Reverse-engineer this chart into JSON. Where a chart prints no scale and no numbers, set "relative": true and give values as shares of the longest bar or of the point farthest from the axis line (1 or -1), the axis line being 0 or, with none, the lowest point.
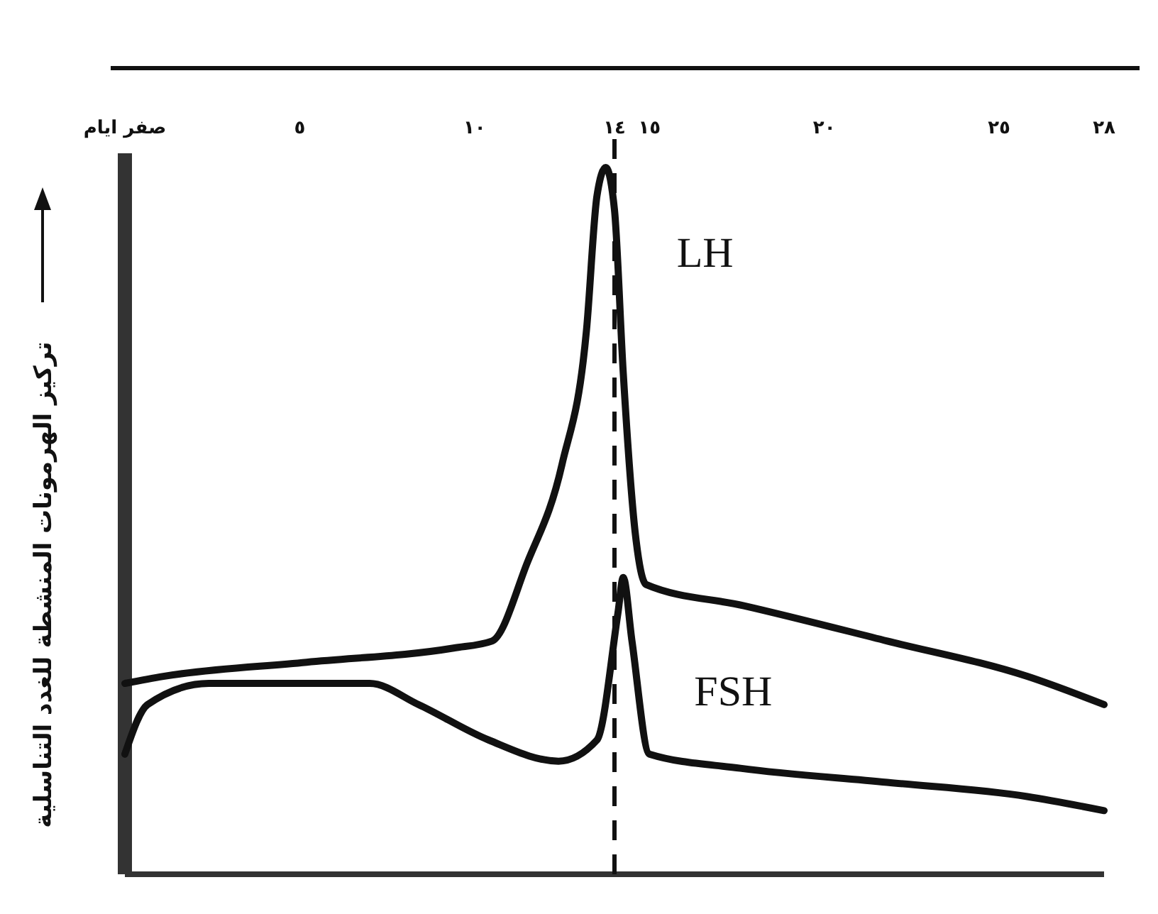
{
  "chart_data": {
    "type": "line",
    "relative": true,
    "ylabel": "تركيز الهرمونات المنشطة للغدد التناسلية",
    "xlim": [
      0,
      28
    ],
    "xticks": [
      {
        "value": 0,
        "label": "صفر ايام"
      },
      {
        "value": 5,
        "label": "٥"
      },
      {
        "value": 10,
        "label": "١٠"
      },
      {
        "value": 14,
        "label": "١٤"
      },
      {
        "value": 15,
        "label": "١٥"
      },
      {
        "value": 20,
        "label": "٢٠"
      },
      {
        "value": 25,
        "label": "٢٥"
      },
      {
        "value": 28,
        "label": "٢٨"
      }
    ],
    "series": [
      {
        "name": "LH",
        "color": "#111111",
        "x": [
          0,
          1.1,
          5.2,
          9.4,
          10.5,
          11.5,
          12.5,
          13.2,
          13.5,
          13.75,
          14,
          14.25,
          14.6,
          14.9,
          17.7,
          21.8,
          25.8,
          28
        ],
        "values": [
          0.27,
          0.28,
          0.3,
          0.32,
          0.33,
          0.44,
          0.58,
          0.77,
          0.96,
          1,
          0.94,
          0.71,
          0.48,
          0.41,
          0.38,
          0.33,
          0.28,
          0.24
        ]
      },
      {
        "name": "FSH",
        "color": "#111111",
        "x": [
          0,
          0.65,
          2.4,
          7,
          8.4,
          10.4,
          12.4,
          13.5,
          14.1,
          14.25,
          14.5,
          15,
          17.6,
          21.8,
          25.8,
          28
        ],
        "values": [
          0.17,
          0.24,
          0.27,
          0.27,
          0.24,
          0.19,
          0.16,
          0.19,
          0.37,
          0.42,
          0.33,
          0.17,
          0.15,
          0.13,
          0.11,
          0.09
        ]
      }
    ],
    "ref_lines": [
      {
        "axis": "x",
        "value": 14,
        "line_style": "dashed",
        "color": "#111111"
      }
    ],
    "grid": false,
    "marker": "none",
    "line_style": "solid"
  }
}
